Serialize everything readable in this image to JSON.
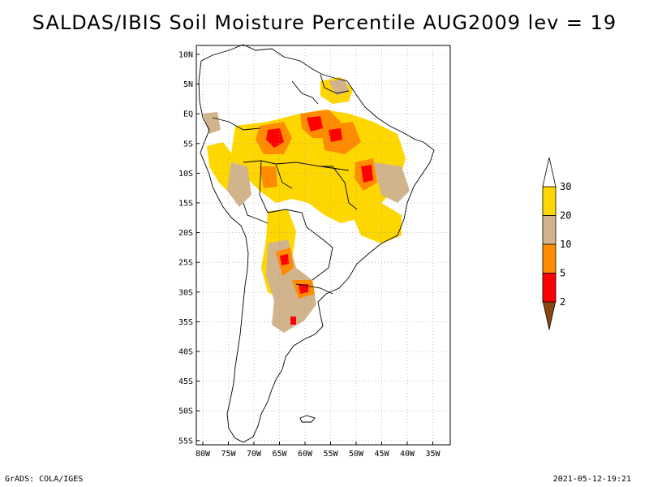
{
  "title": "SALDAS/IBIS Soil Moisture Percentile AUG2009 lev = 19",
  "lat_ticks": [
    "10N",
    "5N",
    "EQ",
    "5S",
    "10S",
    "15S",
    "20S",
    "25S",
    "30S",
    "35S",
    "40S",
    "45S",
    "50S",
    "55S"
  ],
  "lon_ticks": [
    "80W",
    "75W",
    "70W",
    "65W",
    "60W",
    "55W",
    "50W",
    "45W",
    "40W",
    "35W"
  ],
  "map_extent": {
    "lon": [
      -80,
      -33
    ],
    "lat": [
      -56,
      11
    ]
  },
  "colorbar": {
    "labels": [
      "2",
      "5",
      "10",
      "20",
      "30"
    ],
    "colors": [
      "#8B4513",
      "#FF0000",
      "#FF8C00",
      "#D2B48C",
      "#FFD700",
      "#FFFFFF"
    ]
  },
  "footer": {
    "left": "GrADS: COLA/IGES",
    "right": "2021-05-12-19:21"
  }
}
